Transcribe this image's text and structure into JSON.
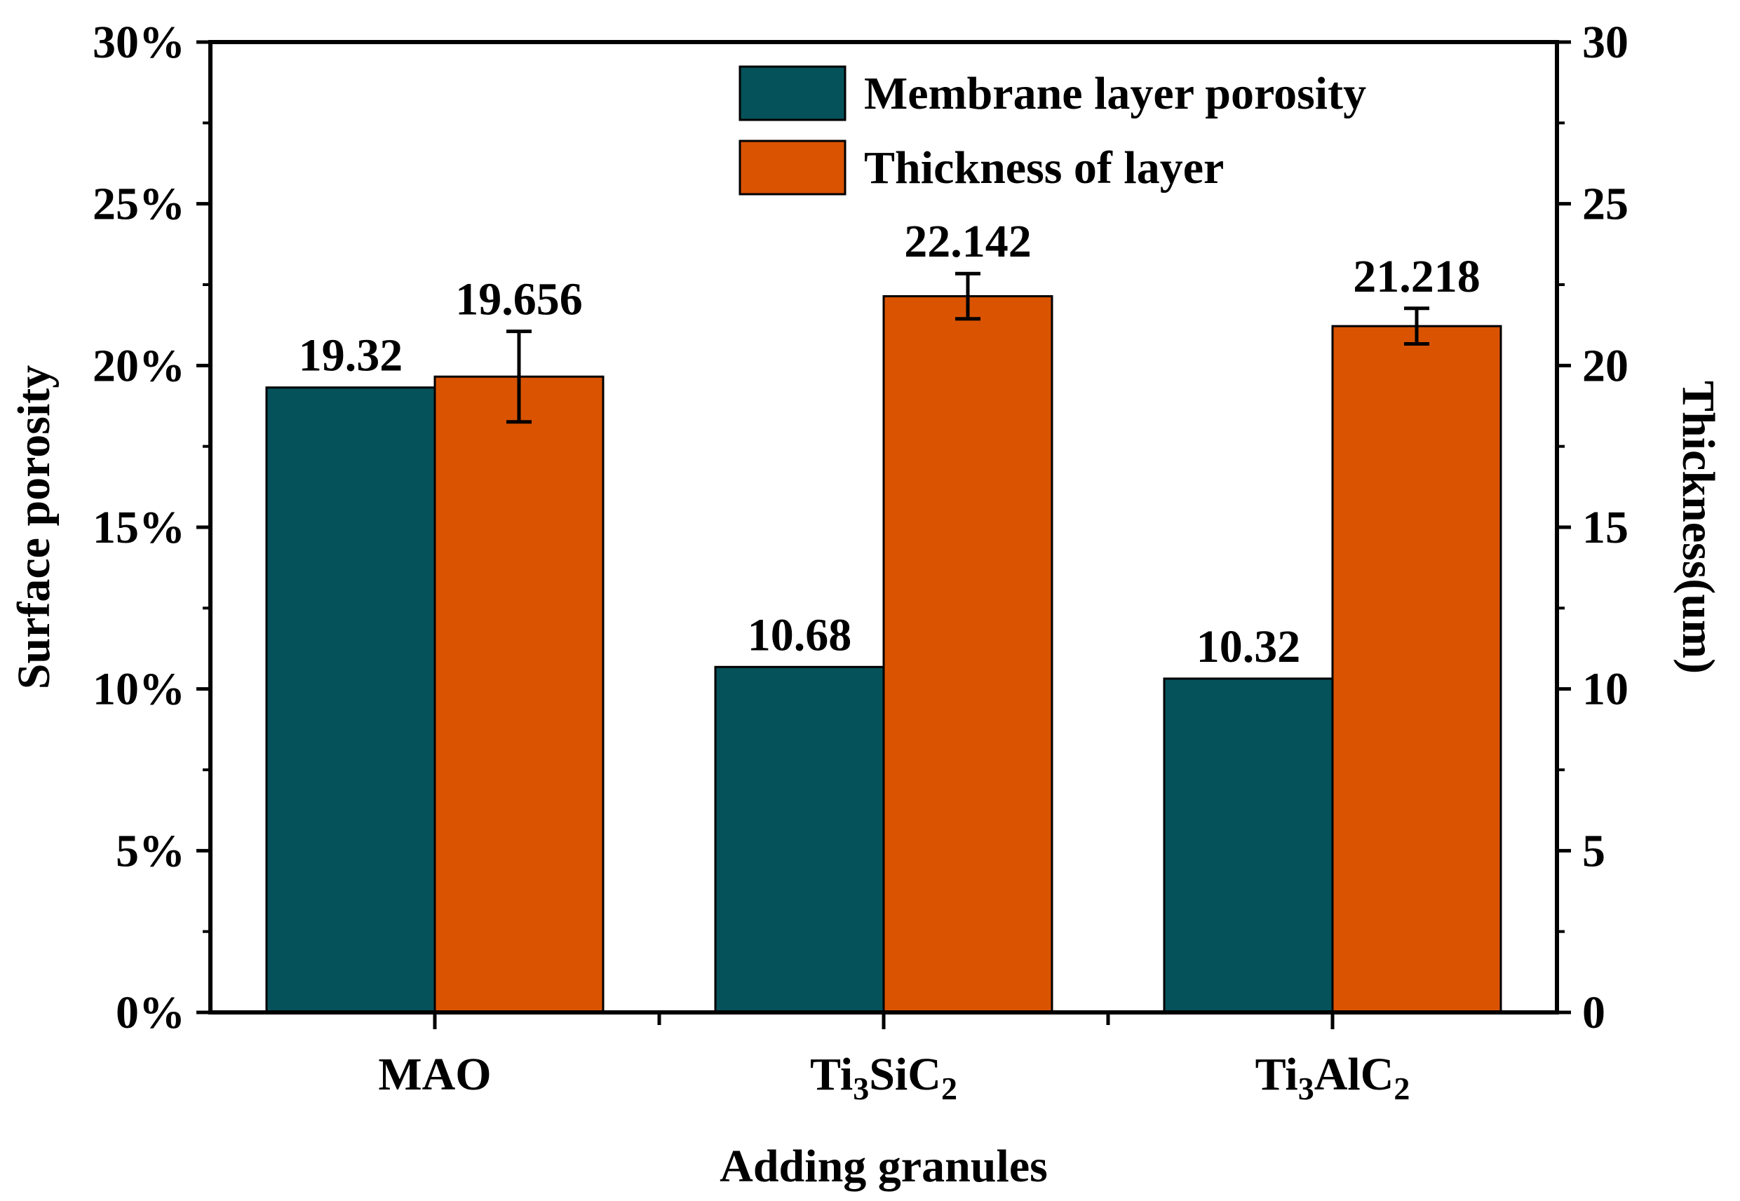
{
  "chart_data": {
    "type": "bar",
    "categories": [
      "MAO",
      "Ti3SiC2",
      "Ti3AlC2"
    ],
    "category_labels": [
      {
        "base": "MAO",
        "parts": []
      },
      {
        "base": "Ti",
        "parts": [
          {
            "t": "3",
            "sub": true
          },
          {
            "t": "SiC",
            "sub": false
          },
          {
            "t": "2",
            "sub": true
          }
        ]
      },
      {
        "base": "Ti",
        "parts": [
          {
            "t": "3",
            "sub": true
          },
          {
            "t": "AlC",
            "sub": false
          },
          {
            "t": "2",
            "sub": true
          }
        ]
      }
    ],
    "xlabel": "Adding granules",
    "ylabel_left": "Surface porosity",
    "ylabel_right": "Thickness(um)",
    "ylim_left": [
      0,
      30
    ],
    "ylim_right": [
      0,
      30
    ],
    "left_ticks": [
      "0%",
      "5%",
      "10%",
      "15%",
      "20%",
      "25%",
      "30%"
    ],
    "right_ticks": [
      "0",
      "5",
      "10",
      "15",
      "20",
      "25",
      "30"
    ],
    "grid": false,
    "legend_position": "top-right",
    "series": [
      {
        "name": "Membrane layer porosity",
        "axis": "left",
        "color": "#05525a",
        "values": [
          19.32,
          10.68,
          10.32
        ],
        "labels": [
          "19.32",
          "10.68",
          "10.32"
        ]
      },
      {
        "name": "Thickness of layer",
        "axis": "right",
        "color": "#d95300",
        "values": [
          19.656,
          22.142,
          21.218
        ],
        "labels": [
          "19.656",
          "22.142",
          "21.218"
        ],
        "error": [
          1.4,
          0.7,
          0.55
        ]
      }
    ]
  }
}
